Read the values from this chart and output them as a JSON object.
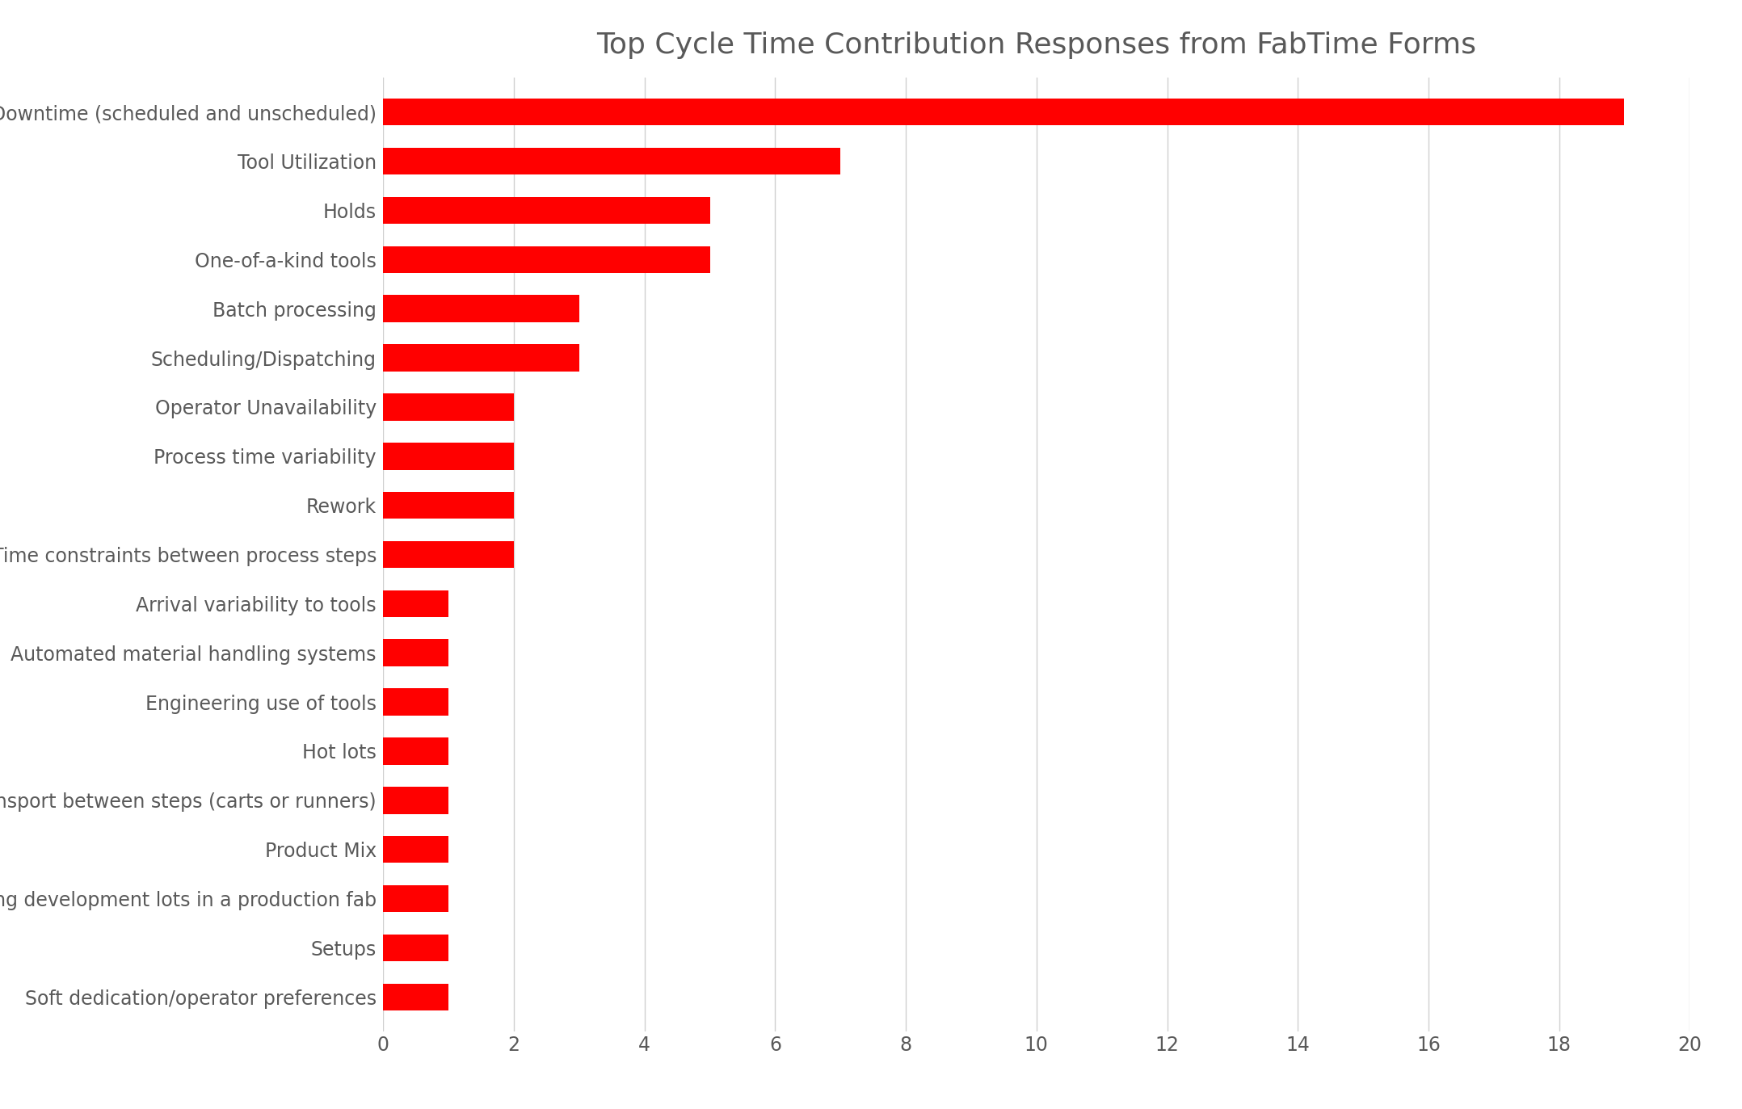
{
  "title": "Top Cycle Time Contribution Responses from FabTime Forms",
  "categories": [
    "Downtime (scheduled and unscheduled)",
    "Tool Utilization",
    "Holds",
    "One-of-a-kind tools",
    "Batch processing",
    "Scheduling/Dispatching",
    "Operator Unavailability",
    "Process time variability",
    "Rework",
    "Time constraints between process steps",
    "Arrival variability to tools",
    "Automated material handling systems",
    "Engineering use of tools",
    "Hot lots",
    "Manual transport between steps (carts or runners)",
    "Product Mix",
    "Running development lots in a production fab",
    "Setups",
    "Soft dedication/operator preferences"
  ],
  "values": [
    19,
    7,
    5,
    5,
    3,
    3,
    2,
    2,
    2,
    2,
    1,
    1,
    1,
    1,
    1,
    1,
    1,
    1,
    1
  ],
  "bar_color": "#ff0000",
  "background_color": "#ffffff",
  "xlim": [
    0,
    20
  ],
  "xticks": [
    0,
    2,
    4,
    6,
    8,
    10,
    12,
    14,
    16,
    18,
    20
  ],
  "title_fontsize": 26,
  "label_fontsize": 17,
  "tick_fontsize": 17,
  "title_color": "#595959",
  "label_color": "#595959",
  "tick_color": "#595959",
  "grid_color": "#d0d0d0",
  "bar_height": 0.55
}
